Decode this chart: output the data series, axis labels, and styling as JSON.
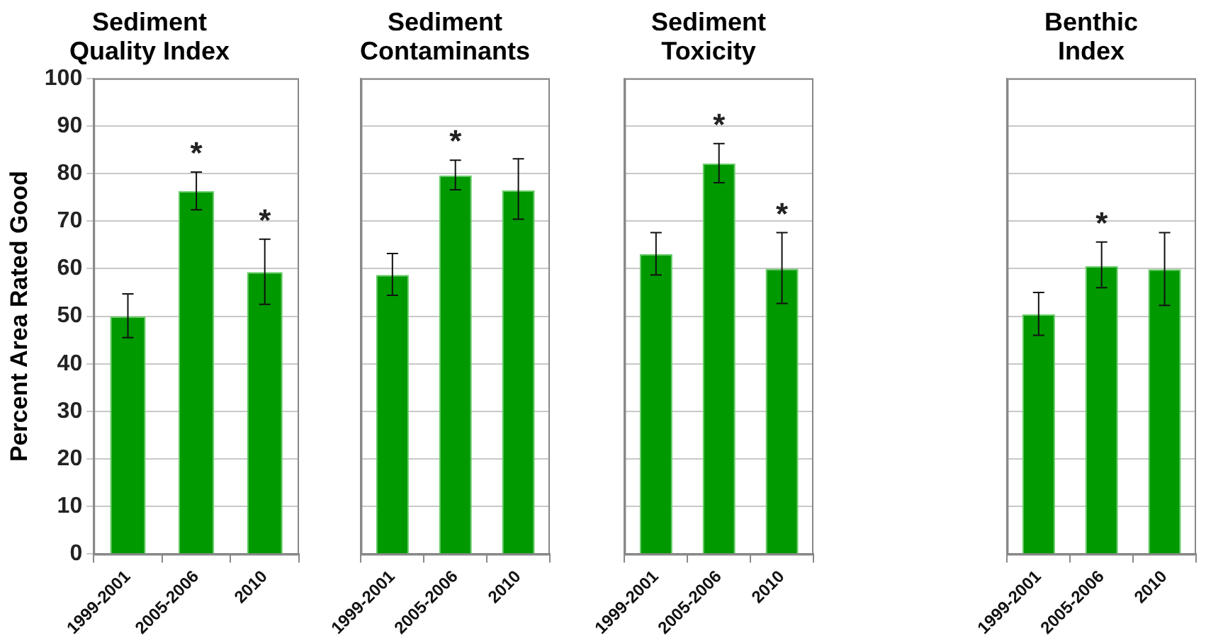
{
  "chart_data": [
    {
      "type": "bar",
      "title": "Sediment Quality Index",
      "ylabel": "Percent Area Rated Good",
      "categories": [
        "1999-2001",
        "2005-2006",
        "2010"
      ],
      "values": [
        50,
        76.3,
        59.3
      ],
      "errors": [
        [
          45.5,
          54.7
        ],
        [
          72.4,
          80.3
        ],
        [
          52.5,
          66.2
        ]
      ],
      "color": "#009900",
      "ylim": [
        0,
        100
      ],
      "yticks": [
        0,
        10,
        20,
        30,
        40,
        50,
        60,
        70,
        80,
        90,
        100
      ],
      "grid": "y",
      "annotations": [
        {
          "text": "*",
          "x": "2005-2006",
          "y": 76.3
        },
        {
          "text": "*",
          "x": "2010",
          "y": 59.3
        }
      ]
    },
    {
      "type": "bar",
      "title": "Sediment Contaminants",
      "categories": [
        "1999-2001",
        "2005-2006",
        "2010"
      ],
      "values": [
        58.7,
        79.6,
        76.5
      ],
      "errors": [
        [
          54.4,
          63.2
        ],
        [
          76.6,
          82.8
        ],
        [
          70.4,
          83.1
        ]
      ],
      "color": "#009900",
      "ylim": [
        0,
        100
      ],
      "yticks": [
        0,
        10,
        20,
        30,
        40,
        50,
        60,
        70,
        80,
        90,
        100
      ],
      "grid": "y",
      "tick_labels": "x",
      "annotations": [
        {
          "text": "*",
          "x": "2005-2006",
          "y": 79.6
        }
      ]
    },
    {
      "type": "bar",
      "title": "Sediment Toxicity",
      "categories": [
        "1999-2001",
        "2005-2006",
        "2010"
      ],
      "values": [
        63.1,
        82.1,
        60
      ],
      "errors": [
        [
          58.7,
          67.6
        ],
        [
          78.1,
          86.3
        ],
        [
          52.7,
          67.6
        ]
      ],
      "color": "#009900",
      "ylim": [
        0,
        100
      ],
      "yticks": [
        0,
        10,
        20,
        30,
        40,
        50,
        60,
        70,
        80,
        90,
        100
      ],
      "grid": "y",
      "tick_labels": "x",
      "annotations": [
        {
          "text": "*",
          "x": "2005-2006",
          "y": 82.1
        },
        {
          "text": "*",
          "x": "2010",
          "y": 60
        }
      ]
    },
    {
      "type": "bar",
      "title": "Benthic Index",
      "categories": [
        "1999-2001",
        "2005-2006",
        "2010"
      ],
      "values": [
        50.4,
        60.5,
        59.9
      ],
      "errors": [
        [
          46,
          55
        ],
        [
          56,
          65.6
        ],
        [
          52.3,
          67.6
        ]
      ],
      "color": "#009900",
      "ylim": [
        0,
        100
      ],
      "yticks": [
        0,
        10,
        20,
        30,
        40,
        50,
        60,
        70,
        80,
        90,
        100
      ],
      "grid": "y",
      "tick_labels": "x",
      "annotations": [
        {
          "text": "*",
          "x": "2005-2006",
          "y": 60.5
        }
      ]
    }
  ]
}
